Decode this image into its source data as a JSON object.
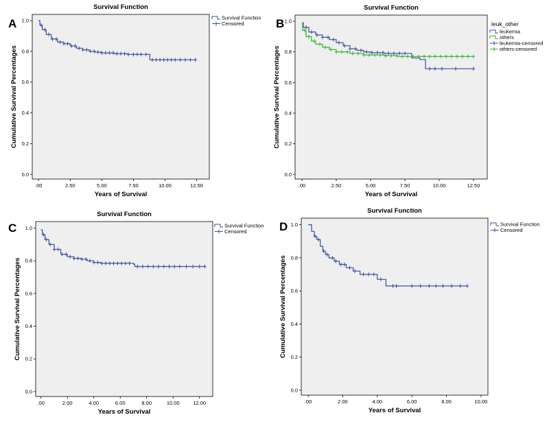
{
  "colors": {
    "blue": "#3a4ea0",
    "green": "#2db52d",
    "plot_bg": "#efefef"
  },
  "chart_data": [
    {
      "panel": "A",
      "type": "line",
      "title": "Survival Function",
      "xlabel": "Years of Survival",
      "ylabel": "Cumulative Survival Percentages",
      "xlim": [
        -0.5,
        13.5
      ],
      "ylim": [
        -0.03,
        1.04
      ],
      "xticks": [
        0,
        2.5,
        5,
        7.5,
        10,
        12.5
      ],
      "xtick_labels": [
        ".00",
        "2.50",
        "5.00",
        "7.50",
        "10.00",
        "12.50"
      ],
      "yticks": [
        0,
        0.2,
        0.4,
        0.6,
        0.8,
        1.0
      ],
      "ytick_labels": [
        "0.0",
        "0.2",
        "0.4",
        "0.6",
        "0.8",
        "1.0"
      ],
      "legend_title": "",
      "legend": [
        "Survival Function",
        "Censored"
      ],
      "series": [
        {
          "name": "Survival Function",
          "color": "#3a4ea0",
          "steps": [
            [
              0,
              1.0
            ],
            [
              0.1,
              0.97
            ],
            [
              0.3,
              0.94
            ],
            [
              0.6,
              0.91
            ],
            [
              1.0,
              0.88
            ],
            [
              1.5,
              0.86
            ],
            [
              2.0,
              0.85
            ],
            [
              2.5,
              0.835
            ],
            [
              3.0,
              0.82
            ],
            [
              3.5,
              0.81
            ],
            [
              4.0,
              0.8
            ],
            [
              4.5,
              0.795
            ],
            [
              5.0,
              0.79
            ],
            [
              6.0,
              0.785
            ],
            [
              7.0,
              0.78
            ],
            [
              8.8,
              0.745
            ],
            [
              12.5,
              0.745
            ]
          ],
          "censored": [
            0.2,
            0.5,
            0.8,
            1.1,
            1.4,
            1.7,
            2.0,
            2.3,
            2.6,
            2.9,
            3.2,
            3.5,
            3.8,
            4.1,
            4.4,
            4.7,
            5.0,
            5.3,
            5.6,
            5.9,
            6.2,
            6.5,
            6.8,
            7.1,
            7.5,
            7.8,
            8.1,
            8.5,
            9.0,
            9.3,
            9.6,
            9.9,
            10.2,
            10.5,
            10.8,
            11.2,
            11.6,
            12.0,
            12.4
          ]
        }
      ]
    },
    {
      "panel": "B",
      "type": "line",
      "title": "Survival Function",
      "xlabel": "Years of Survival",
      "ylabel": "Cumulative Survival Percentages",
      "xlim": [
        -0.5,
        13.5
      ],
      "ylim": [
        -0.03,
        1.04
      ],
      "xticks": [
        0,
        2.5,
        5,
        7.5,
        10,
        12.5
      ],
      "xtick_labels": [
        ".00",
        "2.50",
        "5.00",
        "7.50",
        "10.00",
        "12.50"
      ],
      "yticks": [
        0,
        0.2,
        0.4,
        0.6,
        0.8,
        1.0
      ],
      "ytick_labels": [
        "0.0",
        "0.2",
        "0.4",
        "0.6",
        "0.8",
        "1.0"
      ],
      "legend_title": "leuk_other",
      "legend": [
        "leukemia",
        "others",
        "leukemia-censored",
        "others-censored"
      ],
      "series": [
        {
          "name": "leukemia",
          "color": "#3a4ea0",
          "steps": [
            [
              0,
              0.99
            ],
            [
              0.1,
              0.96
            ],
            [
              0.5,
              0.93
            ],
            [
              1.0,
              0.91
            ],
            [
              1.5,
              0.895
            ],
            [
              2.0,
              0.88
            ],
            [
              2.5,
              0.86
            ],
            [
              3.0,
              0.84
            ],
            [
              3.5,
              0.82
            ],
            [
              4.0,
              0.81
            ],
            [
              4.5,
              0.8
            ],
            [
              5.0,
              0.795
            ],
            [
              6.0,
              0.79
            ],
            [
              7.5,
              0.79
            ],
            [
              8.0,
              0.76
            ],
            [
              8.6,
              0.75
            ],
            [
              9.0,
              0.69
            ],
            [
              12.5,
              0.69
            ]
          ],
          "censored": [
            0.3,
            0.7,
            1.1,
            1.5,
            1.9,
            2.3,
            2.7,
            3.1,
            3.5,
            3.9,
            4.3,
            4.7,
            5.1,
            5.5,
            5.9,
            6.3,
            6.7,
            7.1,
            7.5,
            9.3,
            9.7,
            10.2,
            11.2,
            12.5
          ]
        },
        {
          "name": "others",
          "color": "#2db52d",
          "steps": [
            [
              0,
              0.99
            ],
            [
              0.05,
              0.94
            ],
            [
              0.3,
              0.9
            ],
            [
              0.7,
              0.87
            ],
            [
              1.0,
              0.85
            ],
            [
              1.5,
              0.83
            ],
            [
              2.0,
              0.815
            ],
            [
              2.5,
              0.8
            ],
            [
              3.5,
              0.79
            ],
            [
              4.5,
              0.78
            ],
            [
              6.0,
              0.775
            ],
            [
              7.0,
              0.77
            ],
            [
              12.5,
              0.77
            ]
          ],
          "censored": [
            0.2,
            0.5,
            0.9,
            1.3,
            1.7,
            2.1,
            2.5,
            2.9,
            3.3,
            3.7,
            4.1,
            4.5,
            4.9,
            5.3,
            5.7,
            6.1,
            6.5,
            6.9,
            7.3,
            7.7,
            8.1,
            8.5,
            8.9,
            9.3,
            9.7,
            10.1,
            10.5,
            10.9,
            11.3,
            11.7,
            12.1,
            12.5
          ]
        }
      ]
    },
    {
      "panel": "C",
      "type": "line",
      "title": "Survival Function",
      "xlabel": "Years of Survival",
      "ylabel": "Cumulative Survival Percentages",
      "xlim": [
        -0.4,
        13.0
      ],
      "ylim": [
        -0.03,
        1.04
      ],
      "xticks": [
        0,
        2,
        4,
        6,
        8,
        10,
        12
      ],
      "xtick_labels": [
        ".00",
        "2.00",
        "4.00",
        "6.00",
        "8.00",
        "10.00",
        "12.00"
      ],
      "yticks": [
        0,
        0.2,
        0.4,
        0.6,
        0.8,
        1.0
      ],
      "ytick_labels": [
        "0.0",
        "0.2",
        "0.4",
        "0.6",
        "0.8",
        "1.0"
      ],
      "legend_title": "",
      "legend": [
        "Survival Function",
        "Censored"
      ],
      "series": [
        {
          "name": "Survival Function",
          "color": "#3a4ea0",
          "steps": [
            [
              0,
              0.99
            ],
            [
              0.1,
              0.96
            ],
            [
              0.3,
              0.93
            ],
            [
              0.6,
              0.9
            ],
            [
              1.0,
              0.87
            ],
            [
              1.5,
              0.84
            ],
            [
              2.0,
              0.825
            ],
            [
              2.5,
              0.815
            ],
            [
              3.0,
              0.81
            ],
            [
              3.5,
              0.8
            ],
            [
              4.0,
              0.79
            ],
            [
              4.5,
              0.785
            ],
            [
              7.0,
              0.78
            ],
            [
              7.1,
              0.765
            ],
            [
              12.5,
              0.765
            ]
          ],
          "censored": [
            0.2,
            0.4,
            0.7,
            1.0,
            1.3,
            1.6,
            1.9,
            2.2,
            2.5,
            2.8,
            3.1,
            3.4,
            3.7,
            4.0,
            4.3,
            4.6,
            4.9,
            5.2,
            5.5,
            5.8,
            6.1,
            6.4,
            6.7,
            7.3,
            7.7,
            8.1,
            8.5,
            8.9,
            9.3,
            9.7,
            10.1,
            10.5,
            11.0,
            11.5,
            12.0,
            12.4
          ]
        }
      ]
    },
    {
      "panel": "D",
      "type": "line",
      "title": "Survival Function",
      "xlabel": "Years of Survival",
      "ylabel": "Cumulative Survival Percentages",
      "xlim": [
        -0.4,
        10.4
      ],
      "ylim": [
        -0.03,
        1.04
      ],
      "xticks": [
        0,
        2,
        4,
        6,
        8,
        10
      ],
      "xtick_labels": [
        ".00",
        "2.00",
        "4.00",
        "6.00",
        "8.00",
        "10.00"
      ],
      "yticks": [
        0,
        0.2,
        0.4,
        0.6,
        0.8,
        1.0
      ],
      "ytick_labels": [
        "0.0",
        "0.2",
        "0.4",
        "0.6",
        "0.8",
        "1.0"
      ],
      "legend_title": "",
      "legend": [
        "Survival Function",
        "Censored"
      ],
      "series": [
        {
          "name": "Survival Function",
          "color": "#3a4ea0",
          "steps": [
            [
              0,
              1.0
            ],
            [
              0.2,
              0.96
            ],
            [
              0.35,
              0.93
            ],
            [
              0.5,
              0.91
            ],
            [
              0.7,
              0.87
            ],
            [
              0.85,
              0.84
            ],
            [
              1.0,
              0.82
            ],
            [
              1.2,
              0.8
            ],
            [
              1.5,
              0.78
            ],
            [
              1.8,
              0.76
            ],
            [
              2.2,
              0.74
            ],
            [
              2.6,
              0.72
            ],
            [
              3.0,
              0.7
            ],
            [
              4.0,
              0.67
            ],
            [
              4.5,
              0.63
            ],
            [
              9.2,
              0.63
            ]
          ],
          "censored": [
            0.4,
            0.6,
            0.9,
            1.1,
            1.4,
            1.6,
            1.9,
            2.1,
            2.4,
            2.7,
            3.2,
            3.5,
            3.8,
            4.2,
            4.9,
            5.1,
            6.0,
            6.5,
            7.0,
            7.4,
            7.8,
            8.3,
            8.8,
            9.2
          ]
        }
      ]
    }
  ]
}
